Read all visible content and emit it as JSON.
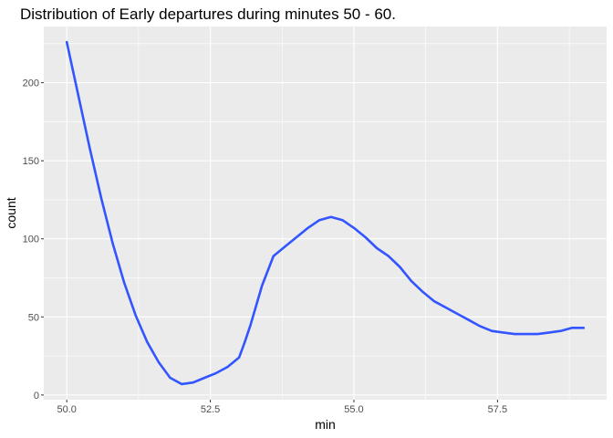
{
  "chart_data": {
    "type": "line",
    "title": "Distribution of Early departures during minutes 50 - 60.",
    "xlabel": "min",
    "ylabel": "count",
    "xlim": [
      49.6,
      59.4
    ],
    "ylim": [
      -3,
      236
    ],
    "x_ticks": [
      50,
      52.5,
      55,
      57.5
    ],
    "x_tick_labels": [
      "50.0",
      "52.5",
      "55.0",
      "57.5"
    ],
    "y_ticks": [
      0,
      50,
      100,
      150,
      200
    ],
    "y_tick_labels": [
      "0",
      "50",
      "100",
      "150",
      "200"
    ],
    "grid": true,
    "legend": "none",
    "series": [
      {
        "color": "#3355ff",
        "x": [
          50.0,
          50.2,
          50.4,
          50.6,
          50.8,
          51.0,
          51.2,
          51.4,
          51.6,
          51.8,
          52.0,
          52.2,
          52.4,
          52.6,
          52.8,
          53.0,
          53.1,
          53.2,
          53.4,
          53.6,
          53.8,
          54.0,
          54.2,
          54.4,
          54.6,
          54.8,
          55.0,
          55.2,
          55.4,
          55.6,
          55.8,
          56.0,
          56.2,
          56.4,
          56.6,
          56.8,
          57.0,
          57.2,
          57.4,
          57.6,
          57.8,
          58.0,
          58.2,
          58.4,
          58.6,
          58.8,
          59.0
        ],
        "y": [
          226,
          192,
          158,
          126,
          97,
          72,
          51,
          34,
          21,
          11,
          7,
          8,
          11,
          14,
          18,
          24,
          34,
          45,
          70,
          89,
          95,
          101,
          107,
          112,
          114,
          112,
          107,
          101,
          94,
          89,
          82,
          73,
          66,
          60,
          56,
          52,
          48,
          44,
          41,
          40,
          39,
          39,
          39,
          40,
          41,
          43,
          43
        ]
      }
    ]
  }
}
